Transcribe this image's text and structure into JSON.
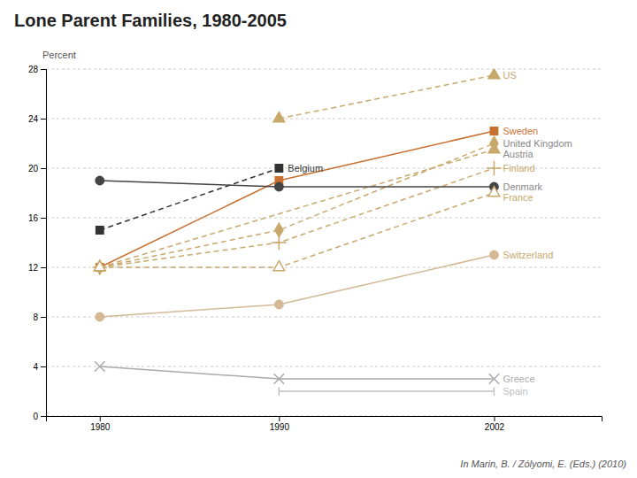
{
  "chart_data": {
    "type": "line",
    "title": "Lone Parent Families, 1980-2005",
    "subtitle": "In Marin, B. / Zólyomi, E. (Eds.) (2010)",
    "ylabel": "Percent",
    "xlim": [
      1977,
      2008
    ],
    "xticks": [
      1980,
      1990,
      2002
    ],
    "ylim": [
      0,
      28
    ],
    "yticks": [
      0,
      4,
      8,
      12,
      16,
      20,
      24,
      28
    ],
    "grid": true,
    "series": [
      {
        "x": [
          1990,
          2002
        ],
        "values": [
          24.0,
          27.5
        ],
        "color": "#c8a86b",
        "line_style": "dashed",
        "marker": "triangle-up"
      },
      {
        "x": [
          1980,
          1990,
          2002
        ],
        "values": [
          12.0,
          19.0,
          23.0
        ],
        "color": "#c87030",
        "line_style": "solid",
        "marker": "square"
      },
      {
        "x": [
          1980,
          1990,
          2002
        ],
        "values": [
          12.0,
          15.0,
          22.0
        ],
        "color": "#c8a86b",
        "line_style": "dashed",
        "marker": "diamond"
      },
      {
        "x": [
          1980,
          2002
        ],
        "values": [
          12.0,
          21.5
        ],
        "color": "#c8a86b",
        "line_style": "dashed",
        "marker": "triangle-up"
      },
      {
        "x": [
          1980,
          1990
        ],
        "values": [
          15.0,
          20.0
        ],
        "color": "#333333",
        "line_style": "dashed",
        "marker": "square"
      },
      {
        "x": [
          1980,
          1990,
          2002
        ],
        "values": [
          12.0,
          14.0,
          20.0
        ],
        "color": "#c8a86b",
        "line_style": "dashed",
        "marker": "plus"
      },
      {
        "x": [
          1980,
          1990,
          2002
        ],
        "values": [
          19.0,
          18.5,
          18.5
        ],
        "color": "#444444",
        "line_style": "solid",
        "marker": "circle"
      },
      {
        "x": [
          1980,
          1990,
          2002
        ],
        "values": [
          12.0,
          12.0,
          18.0
        ],
        "color": "#c8a86b",
        "line_style": "dashed",
        "marker": "triangle-up-open"
      },
      {
        "x": [
          1980,
          1990,
          2002
        ],
        "values": [
          8.0,
          9.0,
          13.0
        ],
        "color": "#d4b896",
        "line_style": "solid",
        "marker": "circle"
      },
      {
        "x": [
          1980,
          1990,
          2002
        ],
        "values": [
          4.0,
          3.0,
          3.0
        ],
        "color": "#aaaaaa",
        "line_style": "solid",
        "marker": "x"
      },
      {
        "x": [
          1990,
          2002
        ],
        "values": [
          2.0,
          2.0
        ],
        "color": "#c0c0c0",
        "line_style": "solid",
        "marker": "vline"
      }
    ],
    "annotations": [
      {
        "text": "US",
        "x": 2002,
        "y": 27.5,
        "color": "#c8a86b"
      },
      {
        "text": "Sweden",
        "x": 2002,
        "y": 23.0,
        "color": "#c87030"
      },
      {
        "text": "United Kingdom",
        "x": 2002,
        "y": 22.0,
        "color": "#888888"
      },
      {
        "text": "Austria",
        "x": 2002,
        "y": 21.5,
        "color": "#888888"
      },
      {
        "text": "Belgium",
        "x": 1990,
        "y": 20.0,
        "color": "#333333"
      },
      {
        "text": "Finland",
        "x": 2002,
        "y": 20.0,
        "color": "#c8a86b"
      },
      {
        "text": "Denmark",
        "x": 2002,
        "y": 18.5,
        "color": "#888888"
      },
      {
        "text": "France",
        "x": 2002,
        "y": 18.0,
        "color": "#c8a86b"
      },
      {
        "text": "Switzerland",
        "x": 2002,
        "y": 13.0,
        "color": "#c8a86b"
      },
      {
        "text": "Greece",
        "x": 2002,
        "y": 3.0,
        "color": "#aaaaaa"
      },
      {
        "text": "Spain",
        "x": 2002,
        "y": 2.0,
        "color": "#c0c0c0"
      }
    ]
  }
}
